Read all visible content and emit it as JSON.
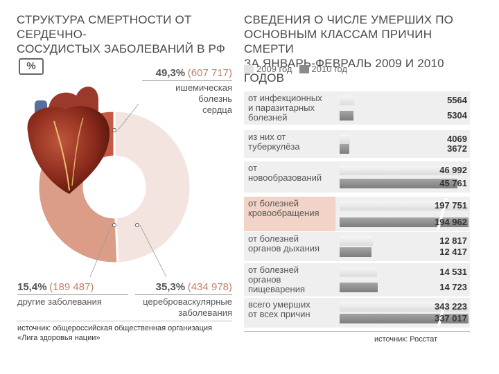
{
  "left_title": [
    "СТРУКТУРА СМЕРТНОСТИ ОТ СЕРДЕЧНО-",
    "СОСУДИСТЫХ ЗАБОЛЕВАНИЙ В РФ"
  ],
  "right_title": [
    "СВЕДЕНИЯ О ЧИСЛЕ УМЕРШИХ ПО",
    "ОСНОВНЫМ КЛАССАМ ПРИЧИН СМЕРТИ",
    "ЗА ЯНВАРЬ-ФЕВРАЛЬ 2009 И 2010 ГОДОВ"
  ],
  "percent_badge": "%",
  "legend": {
    "y2009": "2009 год",
    "y2010": "2010 год"
  },
  "colors": {
    "ischemic": "#f3e4df",
    "cerebro": "#dc9d88",
    "other": "#c45a44",
    "highlight": "#f1d3c7"
  },
  "annotations": {
    "ischemic": {
      "pct": "49,3%",
      "num": "(607 717)",
      "label1": "ишемическая болезнь",
      "label2": "сердца"
    },
    "cerebro": {
      "pct": "35,3%",
      "num": "(434 978)",
      "label1": "цереброваскулярные",
      "label2": "заболевания"
    },
    "other": {
      "pct": "15,4%",
      "num": "(189 487)",
      "label1": "другие заболевания"
    }
  },
  "source_left": [
    "источник: общероссийская общественная организация",
    "«Лига здоровья нации»"
  ],
  "source_right": "источник: Росстат",
  "chart_data": [
    {
      "type": "pie",
      "title": "СТРУКТУРА СМЕРТНОСТИ ОТ СЕРДЕЧНО-СОСУДИСТЫХ ЗАБОЛЕВАНИЙ В РФ",
      "unit": "%",
      "categories": [
        "ишемическая болезнь сердца",
        "цереброваскулярные заболевания",
        "другие заболевания"
      ],
      "values": [
        49.3,
        35.3,
        15.4
      ],
      "counts": [
        607717,
        434978,
        189487
      ]
    },
    {
      "type": "bar",
      "title": "СВЕДЕНИЯ О ЧИСЛЕ УМЕРШИХ ПО ОСНОВНЫМ КЛАССАМ ПРИЧИН СМЕРТИ ЗА ЯНВАРЬ-ФЕВРАЛЬ 2009 И 2010 ГОДОВ",
      "categories": [
        [
          "от инфекционных",
          "и паразитарных",
          "болезней"
        ],
        [
          "из них от",
          "туберкулёза"
        ],
        [
          "от",
          "новообразований"
        ],
        [
          "от болезней",
          "кровообращения"
        ],
        [
          "от болезней",
          "органов дыхания"
        ],
        [
          "от болезней",
          "органов",
          "пищеварения"
        ],
        [
          "всего умерших",
          "от всех причин"
        ]
      ],
      "series": [
        {
          "name": "2009 год",
          "values": [
            5564,
            4069,
            46992,
            197751,
            12817,
            14531,
            343223
          ],
          "labels": [
            "5564",
            "4069",
            "46 992",
            "197 751",
            "12 817",
            "14 531",
            "343 223"
          ]
        },
        {
          "name": "2010 год",
          "values": [
            5304,
            3672,
            45761,
            194962,
            12417,
            14723,
            337017
          ],
          "labels": [
            "5304",
            "3672",
            "45 761",
            "194 962",
            "12 417",
            "14 723",
            "337 017"
          ]
        }
      ],
      "highlight_category_index": 3,
      "broken_axis_categories": [
        3,
        6
      ]
    }
  ]
}
